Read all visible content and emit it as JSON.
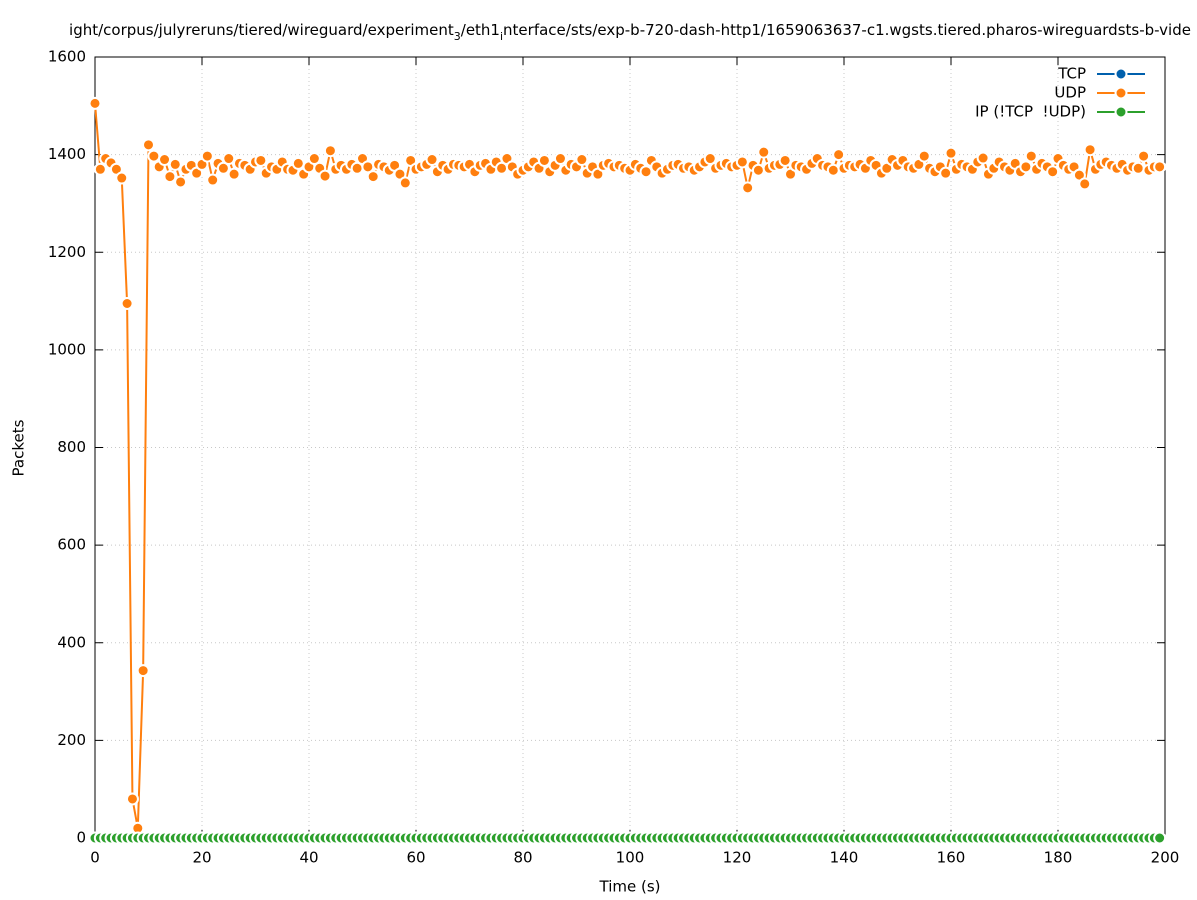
{
  "chart_data": {
    "type": "line",
    "title": [
      "ight/corpus/julyreruns/tiered/wireguard/experiment",
      "3",
      "/eth1",
      "i",
      "nterface/sts/exp-b-720-dash-http1/1659063637-c1.wgsts.tiered.pharos-wireguardsts-b-vide"
    ],
    "title_subscript": [
      false,
      true,
      false,
      true,
      false
    ],
    "x_label": "Time (s)",
    "y_label": "Packets",
    "xlim": [
      0,
      200
    ],
    "xticks": [
      0,
      20,
      40,
      60,
      80,
      100,
      120,
      140,
      160,
      180,
      200
    ],
    "ylim": [
      0,
      1600
    ],
    "yticks": [
      0,
      200,
      400,
      600,
      800,
      1000,
      1200,
      1400,
      1600
    ],
    "grid": true,
    "legend": "top-right",
    "x": [
      0,
      1,
      2,
      3,
      4,
      5,
      6,
      7,
      8,
      9,
      10,
      11,
      12,
      13,
      14,
      15,
      16,
      17,
      18,
      19,
      20,
      21,
      22,
      23,
      24,
      25,
      26,
      27,
      28,
      29,
      30,
      31,
      32,
      33,
      34,
      35,
      36,
      37,
      38,
      39,
      40,
      41,
      42,
      43,
      44,
      45,
      46,
      47,
      48,
      49,
      50,
      51,
      52,
      53,
      54,
      55,
      56,
      57,
      58,
      59,
      60,
      61,
      62,
      63,
      64,
      65,
      66,
      67,
      68,
      69,
      70,
      71,
      72,
      73,
      74,
      75,
      76,
      77,
      78,
      79,
      80,
      81,
      82,
      83,
      84,
      85,
      86,
      87,
      88,
      89,
      90,
      91,
      92,
      93,
      94,
      95,
      96,
      97,
      98,
      99,
      100,
      101,
      102,
      103,
      104,
      105,
      106,
      107,
      108,
      109,
      110,
      111,
      112,
      113,
      114,
      115,
      116,
      117,
      118,
      119,
      120,
      121,
      122,
      123,
      124,
      125,
      126,
      127,
      128,
      129,
      130,
      131,
      132,
      133,
      134,
      135,
      136,
      137,
      138,
      139,
      140,
      141,
      142,
      143,
      144,
      145,
      146,
      147,
      148,
      149,
      150,
      151,
      152,
      153,
      154,
      155,
      156,
      157,
      158,
      159,
      160,
      161,
      162,
      163,
      164,
      165,
      166,
      167,
      168,
      169,
      170,
      171,
      172,
      173,
      174,
      175,
      176,
      177,
      178,
      179,
      180,
      181,
      182,
      183,
      184,
      185,
      186,
      187,
      188,
      189,
      190,
      191,
      192,
      193,
      194,
      195,
      196,
      197,
      198,
      199
    ],
    "series": [
      {
        "name": "TCP",
        "color": "#0060ad",
        "values": [
          0,
          0,
          0,
          0,
          0,
          0,
          0,
          0,
          0,
          0,
          0,
          0,
          0,
          0,
          0,
          0,
          0,
          0,
          0,
          0,
          0,
          0,
          0,
          0,
          0,
          0,
          0,
          0,
          0,
          0,
          0,
          0,
          0,
          0,
          0,
          0,
          0,
          0,
          0,
          0,
          0,
          0,
          0,
          0,
          0,
          0,
          0,
          0,
          0,
          0,
          0,
          0,
          0,
          0,
          0,
          0,
          0,
          0,
          0,
          0,
          0,
          0,
          0,
          0,
          0,
          0,
          0,
          0,
          0,
          0,
          0,
          0,
          0,
          0,
          0,
          0,
          0,
          0,
          0,
          0,
          0,
          0,
          0,
          0,
          0,
          0,
          0,
          0,
          0,
          0,
          0,
          0,
          0,
          0,
          0,
          0,
          0,
          0,
          0,
          0,
          0,
          0,
          0,
          0,
          0,
          0,
          0,
          0,
          0,
          0,
          0,
          0,
          0,
          0,
          0,
          0,
          0,
          0,
          0,
          0,
          0,
          0,
          0,
          0,
          0,
          0,
          0,
          0,
          0,
          0,
          0,
          0,
          0,
          0,
          0,
          0,
          0,
          0,
          0,
          0,
          0,
          0,
          0,
          0,
          0,
          0,
          0,
          0,
          0,
          0,
          0,
          0,
          0,
          0,
          0,
          0,
          0,
          0,
          0,
          0,
          0,
          0,
          0,
          0,
          0,
          0,
          0,
          0,
          0,
          0,
          0,
          0,
          0,
          0,
          0,
          0,
          0,
          0,
          0,
          0,
          0,
          0,
          0,
          0,
          0,
          0,
          0,
          0,
          0,
          0,
          0,
          0,
          0,
          0,
          0,
          0,
          0,
          0,
          0,
          0
        ]
      },
      {
        "name": "UDP",
        "color": "#ff7f0e",
        "values": [
          1505,
          1370,
          1392,
          1383,
          1370,
          1352,
          1095,
          80,
          20,
          343,
          1420,
          1397,
          1375,
          1390,
          1355,
          1380,
          1344,
          1370,
          1378,
          1362,
          1380,
          1397,
          1348,
          1382,
          1372,
          1392,
          1360,
          1382,
          1378,
          1370,
          1385,
          1388,
          1362,
          1375,
          1370,
          1385,
          1370,
          1368,
          1382,
          1360,
          1375,
          1392,
          1372,
          1356,
          1408,
          1370,
          1378,
          1370,
          1380,
          1372,
          1392,
          1375,
          1355,
          1380,
          1375,
          1368,
          1378,
          1360,
          1342,
          1388,
          1370,
          1375,
          1380,
          1390,
          1365,
          1378,
          1370,
          1380,
          1378,
          1375,
          1380,
          1365,
          1378,
          1382,
          1370,
          1385,
          1372,
          1392,
          1375,
          1360,
          1368,
          1375,
          1385,
          1372,
          1388,
          1365,
          1378,
          1392,
          1368,
          1380,
          1375,
          1390,
          1362,
          1375,
          1360,
          1378,
          1382,
          1375,
          1378,
          1372,
          1368,
          1380,
          1372,
          1365,
          1388,
          1375,
          1362,
          1370,
          1378,
          1380,
          1372,
          1375,
          1368,
          1375,
          1385,
          1392,
          1372,
          1378,
          1382,
          1375,
          1378,
          1385,
          1332,
          1378,
          1368,
          1405,
          1372,
          1378,
          1380,
          1388,
          1360,
          1378,
          1375,
          1370,
          1382,
          1392,
          1378,
          1375,
          1368,
          1400,
          1372,
          1378,
          1375,
          1380,
          1372,
          1388,
          1378,
          1362,
          1372,
          1390,
          1378,
          1388,
          1375,
          1372,
          1380,
          1397,
          1372,
          1365,
          1375,
          1362,
          1403,
          1370,
          1380,
          1375,
          1370,
          1385,
          1393,
          1360,
          1372,
          1385,
          1375,
          1368,
          1382,
          1365,
          1375,
          1397,
          1370,
          1382,
          1375,
          1365,
          1392,
          1378,
          1370,
          1375,
          1358,
          1340,
          1410,
          1370,
          1380,
          1385,
          1378,
          1372,
          1380,
          1368,
          1375,
          1372,
          1397,
          1368,
          1375,
          1375
        ]
      },
      {
        "name": "IP (!TCP  !UDP)",
        "color": "#2ca02c",
        "values": [
          0,
          0,
          0,
          0,
          0,
          0,
          0,
          0,
          0,
          0,
          0,
          0,
          0,
          0,
          0,
          0,
          0,
          0,
          0,
          0,
          0,
          0,
          0,
          0,
          0,
          0,
          0,
          0,
          0,
          0,
          0,
          0,
          0,
          0,
          0,
          0,
          0,
          0,
          0,
          0,
          0,
          0,
          0,
          0,
          0,
          0,
          0,
          0,
          0,
          0,
          0,
          0,
          0,
          0,
          0,
          0,
          0,
          0,
          0,
          0,
          0,
          0,
          0,
          0,
          0,
          0,
          0,
          0,
          0,
          0,
          0,
          0,
          0,
          0,
          0,
          0,
          0,
          0,
          0,
          0,
          0,
          0,
          0,
          0,
          0,
          0,
          0,
          0,
          0,
          0,
          0,
          0,
          0,
          0,
          0,
          0,
          0,
          0,
          0,
          0,
          0,
          0,
          0,
          0,
          0,
          0,
          0,
          0,
          0,
          0,
          0,
          0,
          0,
          0,
          0,
          0,
          0,
          0,
          0,
          0,
          0,
          0,
          0,
          0,
          0,
          0,
          0,
          0,
          0,
          0,
          0,
          0,
          0,
          0,
          0,
          0,
          0,
          0,
          0,
          0,
          0,
          0,
          0,
          0,
          0,
          0,
          0,
          0,
          0,
          0,
          0,
          0,
          0,
          0,
          0,
          0,
          0,
          0,
          0,
          0,
          0,
          0,
          0,
          0,
          0,
          0,
          0,
          0,
          0,
          0,
          0,
          0,
          0,
          0,
          0,
          0,
          0,
          0,
          0,
          0,
          0,
          0,
          0,
          0,
          0,
          0,
          0,
          0,
          0,
          0,
          0,
          0,
          0,
          0,
          0,
          0,
          0,
          0,
          0,
          0
        ]
      }
    ]
  }
}
